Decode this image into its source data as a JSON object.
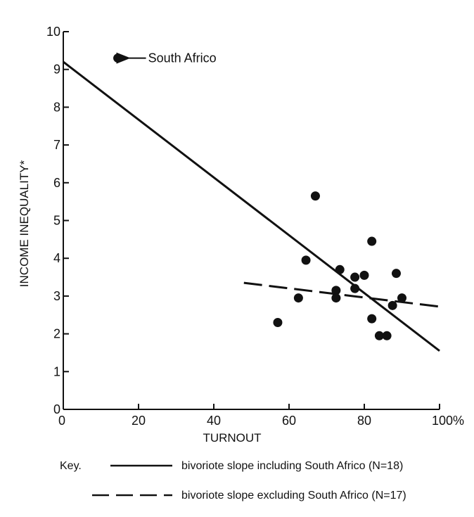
{
  "chart_data": {
    "type": "scatter",
    "title": "",
    "xlabel": "TURNOUT",
    "ylabel": "INCOME INEQUALITY*",
    "xlim": [
      0,
      100
    ],
    "ylim": [
      0,
      10
    ],
    "x_ticks": [
      "0",
      "20",
      "40",
      "60",
      "80",
      "100%"
    ],
    "y_ticks": [
      "0",
      "1",
      "2",
      "3",
      "4",
      "5",
      "6",
      "7",
      "8",
      "9",
      "10"
    ],
    "grid": false,
    "points": [
      {
        "x": 14.5,
        "y": 9.3
      },
      {
        "x": 57,
        "y": 2.3
      },
      {
        "x": 62.5,
        "y": 2.95
      },
      {
        "x": 64.5,
        "y": 3.95
      },
      {
        "x": 67,
        "y": 5.65
      },
      {
        "x": 72.5,
        "y": 3.15
      },
      {
        "x": 72.5,
        "y": 2.95
      },
      {
        "x": 73.5,
        "y": 3.7
      },
      {
        "x": 77.5,
        "y": 3.5
      },
      {
        "x": 77.5,
        "y": 3.2
      },
      {
        "x": 80,
        "y": 3.55
      },
      {
        "x": 82,
        "y": 4.45
      },
      {
        "x": 82,
        "y": 2.4
      },
      {
        "x": 84,
        "y": 1.95
      },
      {
        "x": 86,
        "y": 1.95
      },
      {
        "x": 87.5,
        "y": 2.75
      },
      {
        "x": 88.5,
        "y": 3.6
      },
      {
        "x": 90,
        "y": 2.95
      }
    ],
    "lines": [
      {
        "style": "solid",
        "from": [
          0,
          9.2
        ],
        "to": [
          100,
          1.55
        ]
      },
      {
        "style": "dashed",
        "from": [
          48,
          3.35
        ],
        "to": [
          100,
          2.72
        ]
      }
    ],
    "annotation": {
      "text": "South Africo",
      "point": [
        14.5,
        9.3
      ]
    },
    "legend": {
      "placement": "bottom",
      "title": "Key.",
      "entries": [
        {
          "style": "solid",
          "label": "bivoriote slope including South Africo (N=18)"
        },
        {
          "style": "dashed",
          "label": "bivoriote slope excluding South Africo (N=17)"
        }
      ]
    }
  }
}
